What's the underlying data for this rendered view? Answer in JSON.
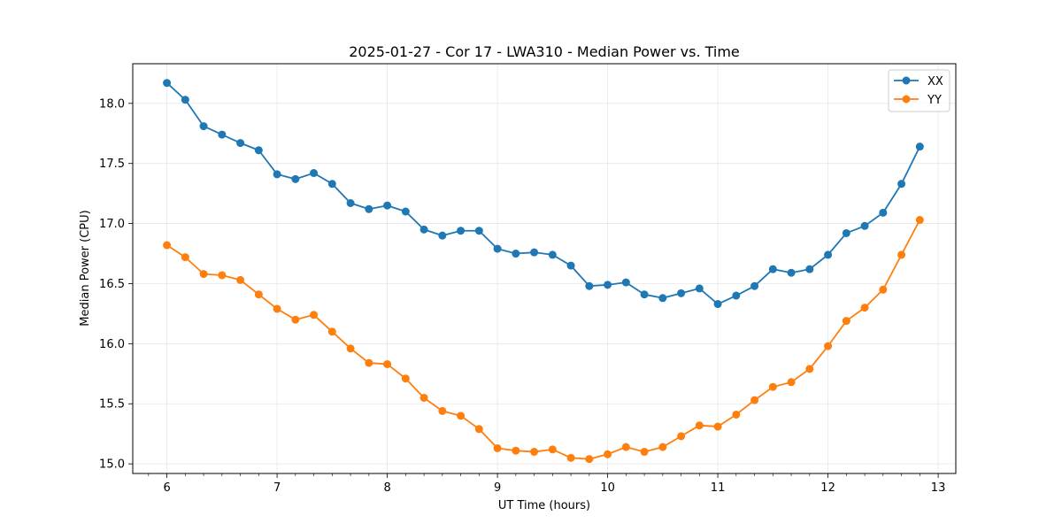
{
  "chart_data": {
    "type": "line",
    "title": "2025-01-27 - Cor 17 - LWA310 - Median Power vs. Time",
    "xlabel": "UT Time (hours)",
    "ylabel": "Median Power (CPU)",
    "xlim": [
      5.69,
      13.16
    ],
    "ylim": [
      14.92,
      18.33
    ],
    "xticks": [
      6,
      7,
      8,
      9,
      10,
      11,
      12,
      13
    ],
    "xtick_labels": [
      "6",
      "7",
      "8",
      "9",
      "10",
      "11",
      "12",
      "13"
    ],
    "yticks": [
      15.0,
      15.5,
      16.0,
      16.5,
      17.0,
      17.5,
      18.0
    ],
    "ytick_labels": [
      "15.0",
      "15.5",
      "16.0",
      "16.5",
      "17.0",
      "17.5",
      "18.0"
    ],
    "grid": true,
    "legend_position": "top-right",
    "x": [
      6.0,
      6.1667,
      6.3333,
      6.5,
      6.6667,
      6.8333,
      7.0,
      7.1667,
      7.3333,
      7.5,
      7.6667,
      7.8333,
      8.0,
      8.1667,
      8.3333,
      8.5,
      8.6667,
      8.8333,
      9.0,
      9.1667,
      9.3333,
      9.5,
      9.6667,
      9.8333,
      10.0,
      10.1667,
      10.3333,
      10.5,
      10.6667,
      10.8333,
      11.0,
      11.1667,
      11.3333,
      11.5,
      11.6667,
      11.8333,
      12.0,
      12.1667,
      12.3333,
      12.5,
      12.6667,
      12.8333
    ],
    "series": [
      {
        "name": "XX",
        "color": "#1f77b4",
        "values": [
          18.17,
          18.03,
          17.81,
          17.74,
          17.67,
          17.61,
          17.41,
          17.37,
          17.42,
          17.33,
          17.17,
          17.12,
          17.15,
          17.1,
          16.95,
          16.9,
          16.94,
          16.94,
          16.79,
          16.75,
          16.76,
          16.74,
          16.65,
          16.48,
          16.49,
          16.51,
          16.41,
          16.38,
          16.42,
          16.46,
          16.33,
          16.4,
          16.48,
          16.62,
          16.59,
          16.62,
          16.74,
          16.92,
          16.98,
          17.09,
          17.33,
          17.64
        ]
      },
      {
        "name": "YY",
        "color": "#ff7f0e",
        "values": [
          16.82,
          16.72,
          16.58,
          16.57,
          16.53,
          16.41,
          16.29,
          16.2,
          16.24,
          16.1,
          15.96,
          15.84,
          15.83,
          15.71,
          15.55,
          15.44,
          15.4,
          15.29,
          15.13,
          15.11,
          15.1,
          15.12,
          15.05,
          15.04,
          15.08,
          15.14,
          15.1,
          15.14,
          15.23,
          15.32,
          15.31,
          15.41,
          15.53,
          15.64,
          15.68,
          15.79,
          15.98,
          16.19,
          16.3,
          16.45,
          16.74,
          17.03
        ]
      }
    ]
  }
}
